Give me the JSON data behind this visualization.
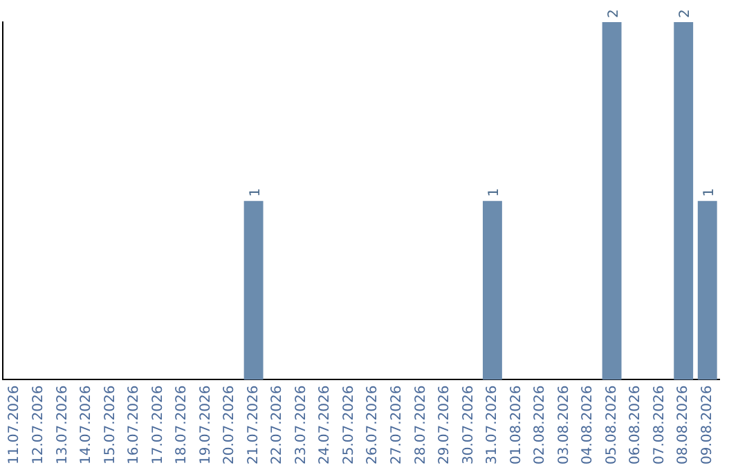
{
  "chart_data": {
    "type": "bar",
    "categories": [
      "11.07.2026",
      "12.07.2026",
      "13.07.2026",
      "14.07.2026",
      "15.07.2026",
      "16.07.2026",
      "17.07.2026",
      "18.07.2026",
      "19.07.2026",
      "20.07.2026",
      "21.07.2026",
      "22.07.2026",
      "23.07.2026",
      "24.07.2026",
      "25.07.2026",
      "26.07.2026",
      "27.07.2026",
      "28.07.2026",
      "29.07.2026",
      "30.07.2026",
      "31.07.2026",
      "01.08.2026",
      "02.08.2026",
      "03.08.2026",
      "04.08.2026",
      "05.08.2026",
      "06.08.2026",
      "07.08.2026",
      "08.08.2026",
      "09.08.2026"
    ],
    "values": [
      0,
      0,
      0,
      0,
      0,
      0,
      0,
      0,
      0,
      0,
      1,
      0,
      0,
      0,
      0,
      0,
      0,
      0,
      0,
      0,
      1,
      0,
      0,
      0,
      0,
      2,
      0,
      0,
      2,
      1
    ],
    "value_labels": [
      null,
      null,
      null,
      null,
      null,
      null,
      null,
      null,
      null,
      null,
      "1",
      null,
      null,
      null,
      null,
      null,
      null,
      null,
      null,
      null,
      "1",
      null,
      null,
      null,
      null,
      "2",
      null,
      null,
      "2",
      "1"
    ],
    "color": "#6b8cae",
    "grid": false,
    "legend": false,
    "tick_labels": "x"
  }
}
